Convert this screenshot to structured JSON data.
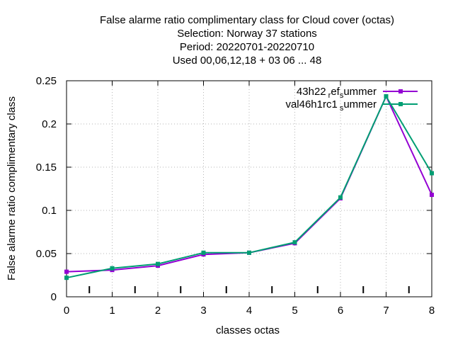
{
  "chart_data": {
    "type": "line",
    "title_lines": [
      "False alarme ratio complimentary class  for Cloud cover (octas)",
      "Selection: Norway     37 stations",
      "Period: 20220701-20220710",
      "Used  00,06,12,18  + 03 06 ... 48"
    ],
    "xlabel": "classes octas",
    "ylabel": "False alarme ratio complimentary class",
    "xlim": [
      0,
      8
    ],
    "ylim": [
      0,
      0.25
    ],
    "xticks": [
      "0",
      "1",
      "2",
      "3",
      "4",
      "5",
      "6",
      "7",
      "8"
    ],
    "yticks": [
      "0",
      "0.05",
      "0.1",
      "0.15",
      "0.2",
      "0.25"
    ],
    "grid": true,
    "legend_position": "top-right",
    "series": [
      {
        "name_main": "43h22",
        "name_sub1": "r",
        "name_mid": "ef",
        "name_sub2": "s",
        "name_tail": "ummer",
        "color": "#9400d3",
        "x": [
          0,
          1,
          2,
          3,
          4,
          5,
          6,
          7,
          8
        ],
        "values": [
          0.029,
          0.031,
          0.036,
          0.049,
          0.051,
          0.062,
          0.114,
          0.232,
          0.118
        ]
      },
      {
        "name_main": "val46h1rc1",
        "name_sub1": "",
        "name_mid": "",
        "name_sub2": "s",
        "name_tail": "ummer",
        "color": "#009e73",
        "x": [
          0,
          1,
          2,
          3,
          4,
          5,
          6,
          7,
          8
        ],
        "values": [
          0.022,
          0.033,
          0.038,
          0.051,
          0.051,
          0.063,
          0.115,
          0.232,
          0.143
        ]
      }
    ],
    "bottom_markers_x": [
      0.5,
      1.5,
      2.5,
      3.5,
      4.5,
      5.5,
      6.5,
      7.5
    ]
  }
}
